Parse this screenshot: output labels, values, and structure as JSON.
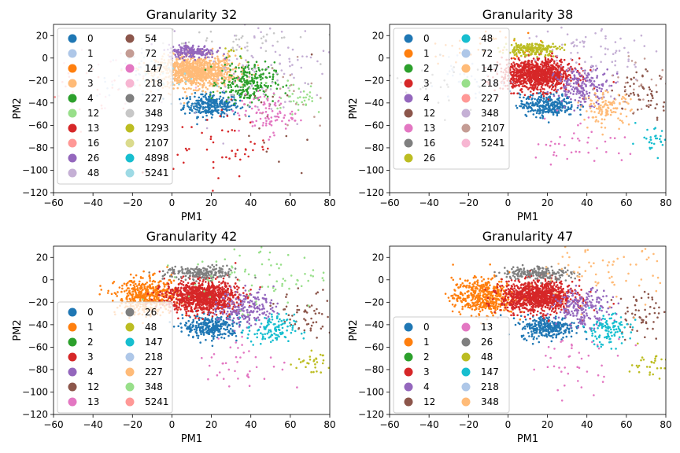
{
  "chart_data": [
    {
      "type": "scatter",
      "title": "Granularity 32",
      "xlabel": "PM1",
      "ylabel": "PM2",
      "xlim": [
        -60,
        80
      ],
      "ylim": [
        -120,
        30
      ],
      "xticks": [
        -60,
        -40,
        -20,
        0,
        20,
        40,
        60,
        80
      ],
      "yticks": [
        -120,
        -100,
        -80,
        -60,
        -40,
        -20,
        0,
        20
      ],
      "legend": {
        "placement": "upper-left",
        "columns": 2
      },
      "series": [
        {
          "name": "0",
          "color": "#1f77b4",
          "center": [
            20,
            -42
          ],
          "spread": [
            7,
            5
          ],
          "count": 300
        },
        {
          "name": "1",
          "color": "#aec7e8",
          "center": [
            -18,
            -15
          ],
          "spread": [
            10,
            10
          ],
          "count": 40
        },
        {
          "name": "2",
          "color": "#ff7f0e",
          "center": [
            0,
            0
          ],
          "spread": [
            0,
            0
          ],
          "count": 0
        },
        {
          "name": "3",
          "color": "#ffbb78",
          "center": [
            12,
            -12
          ],
          "spread": [
            10,
            7
          ],
          "count": 1000
        },
        {
          "name": "4",
          "color": "#2ca02c",
          "center": [
            38,
            -22
          ],
          "spread": [
            7,
            9
          ],
          "count": 250
        },
        {
          "name": "12",
          "color": "#98df8a",
          "center": [
            65,
            -35
          ],
          "spread": [
            7,
            7
          ],
          "count": 40
        },
        {
          "name": "13",
          "color": "#d62728",
          "center": [
            25,
            -75
          ],
          "spread": [
            12,
            18
          ],
          "count": 50
        },
        {
          "name": "16",
          "color": "#ff9896",
          "center": [
            -40,
            -30
          ],
          "spread": [
            12,
            15
          ],
          "count": 25
        },
        {
          "name": "26",
          "color": "#9467bd",
          "center": [
            10,
            6
          ],
          "spread": [
            6,
            3
          ],
          "count": 200
        },
        {
          "name": "48",
          "color": "#c5b0d5",
          "center": [
            45,
            -10
          ],
          "spread": [
            18,
            22
          ],
          "count": 100
        },
        {
          "name": "54",
          "color": "#8c564b",
          "center": [
            55,
            -65
          ],
          "spread": [
            10,
            25
          ],
          "count": 15
        },
        {
          "name": "72",
          "color": "#c49c94",
          "center": [
            60,
            -30
          ],
          "spread": [
            12,
            20
          ],
          "count": 20
        },
        {
          "name": "147",
          "color": "#e377c2",
          "center": [
            48,
            -50
          ],
          "spread": [
            7,
            9
          ],
          "count": 90
        },
        {
          "name": "218",
          "color": "#f7b6d2",
          "center": [
            -30,
            -20
          ],
          "spread": [
            15,
            15
          ],
          "count": 20
        },
        {
          "name": "227",
          "color": "#7f7f7f",
          "center": [
            0,
            0
          ],
          "spread": [
            0,
            0
          ],
          "count": 0
        },
        {
          "name": "348",
          "color": "#c7c7c7",
          "center": [
            30,
            15
          ],
          "spread": [
            20,
            8
          ],
          "count": 40
        },
        {
          "name": "1293",
          "color": "#bcbd22",
          "center": [
            30,
            5
          ],
          "spread": [
            3,
            3
          ],
          "count": 8
        },
        {
          "name": "2107",
          "color": "#dbdb8d",
          "center": [
            0,
            0
          ],
          "spread": [
            0,
            0
          ],
          "count": 0
        },
        {
          "name": "4898",
          "color": "#17becf",
          "center": [
            0,
            0
          ],
          "spread": [
            0,
            0
          ],
          "count": 0
        },
        {
          "name": "5241",
          "color": "#9edae5",
          "center": [
            -10,
            -15
          ],
          "spread": [
            10,
            10
          ],
          "count": 30
        }
      ]
    },
    {
      "type": "scatter",
      "title": "Granularity 38",
      "xlabel": "PM1",
      "ylabel": "PM2",
      "xlim": [
        -60,
        80
      ],
      "ylim": [
        -120,
        30
      ],
      "xticks": [
        -60,
        -40,
        -20,
        0,
        20,
        40,
        60,
        80
      ],
      "yticks": [
        -120,
        -100,
        -80,
        -60,
        -40,
        -20,
        0,
        20
      ],
      "legend": {
        "placement": "upper-left",
        "columns": 2
      },
      "series": [
        {
          "name": "0",
          "color": "#1f77b4",
          "center": [
            20,
            -42
          ],
          "spread": [
            7,
            5
          ],
          "count": 300
        },
        {
          "name": "1",
          "color": "#ff7f0e",
          "center": [
            -15,
            12
          ],
          "spread": [
            15,
            8
          ],
          "count": 40
        },
        {
          "name": "2",
          "color": "#2ca02c",
          "center": [
            0,
            0
          ],
          "spread": [
            0,
            0
          ],
          "count": 0
        },
        {
          "name": "3",
          "color": "#d62728",
          "center": [
            15,
            -15
          ],
          "spread": [
            9,
            7
          ],
          "count": 1000
        },
        {
          "name": "4",
          "color": "#9467bd",
          "center": [
            38,
            -25
          ],
          "spread": [
            7,
            8
          ],
          "count": 200
        },
        {
          "name": "12",
          "color": "#8c564b",
          "center": [
            70,
            -30
          ],
          "spread": [
            8,
            10
          ],
          "count": 60
        },
        {
          "name": "13",
          "color": "#e377c2",
          "center": [
            35,
            -75
          ],
          "spread": [
            12,
            12
          ],
          "count": 40
        },
        {
          "name": "16",
          "color": "#7f7f7f",
          "center": [
            -35,
            -20
          ],
          "spread": [
            15,
            12
          ],
          "count": 30
        },
        {
          "name": "26",
          "color": "#bcbd22",
          "center": [
            12,
            8
          ],
          "spread": [
            7,
            3
          ],
          "count": 200
        },
        {
          "name": "48",
          "color": "#17becf",
          "center": [
            72,
            -75
          ],
          "spread": [
            5,
            6
          ],
          "count": 30
        },
        {
          "name": "72",
          "color": "#aec7e8",
          "center": [
            -20,
            -20
          ],
          "spread": [
            10,
            8
          ],
          "count": 40
        },
        {
          "name": "147",
          "color": "#ffbb78",
          "center": [
            50,
            -45
          ],
          "spread": [
            6,
            7
          ],
          "count": 120
        },
        {
          "name": "218",
          "color": "#98df8a",
          "center": [
            0,
            0
          ],
          "spread": [
            0,
            0
          ],
          "count": 0
        },
        {
          "name": "227",
          "color": "#ff9896",
          "center": [
            0,
            0
          ],
          "spread": [
            0,
            0
          ],
          "count": 0
        },
        {
          "name": "348",
          "color": "#c5b0d5",
          "center": [
            45,
            5
          ],
          "spread": [
            18,
            15
          ],
          "count": 80
        },
        {
          "name": "2107",
          "color": "#c49c94",
          "center": [
            65,
            -20
          ],
          "spread": [
            10,
            15
          ],
          "count": 25
        },
        {
          "name": "5241",
          "color": "#f7b6d2",
          "center": [
            0,
            0
          ],
          "spread": [
            0,
            0
          ],
          "count": 0
        }
      ]
    },
    {
      "type": "scatter",
      "title": "Granularity 42",
      "xlabel": "PM1",
      "ylabel": "PM2",
      "xlim": [
        -60,
        80
      ],
      "ylim": [
        -120,
        30
      ],
      "xticks": [
        -60,
        -40,
        -20,
        0,
        20,
        40,
        60,
        80
      ],
      "yticks": [
        -120,
        -100,
        -80,
        -60,
        -40,
        -20,
        0,
        20
      ],
      "legend": {
        "placement": "lower-left",
        "columns": 2
      },
      "series": [
        {
          "name": "0",
          "color": "#1f77b4",
          "center": [
            20,
            -42
          ],
          "spread": [
            7,
            5
          ],
          "count": 300
        },
        {
          "name": "1",
          "color": "#ff7f0e",
          "center": [
            -12,
            -15
          ],
          "spread": [
            8,
            8
          ],
          "count": 500
        },
        {
          "name": "2",
          "color": "#2ca02c",
          "center": [
            0,
            0
          ],
          "spread": [
            0,
            0
          ],
          "count": 0
        },
        {
          "name": "3",
          "color": "#d62728",
          "center": [
            15,
            -15
          ],
          "spread": [
            9,
            7
          ],
          "count": 1000
        },
        {
          "name": "4",
          "color": "#9467bd",
          "center": [
            38,
            -25
          ],
          "spread": [
            7,
            8
          ],
          "count": 200
        },
        {
          "name": "12",
          "color": "#8c564b",
          "center": [
            70,
            -30
          ],
          "spread": [
            8,
            10
          ],
          "count": 60
        },
        {
          "name": "13",
          "color": "#e377c2",
          "center": [
            35,
            -75
          ],
          "spread": [
            12,
            12
          ],
          "count": 40
        },
        {
          "name": "26",
          "color": "#7f7f7f",
          "center": [
            15,
            6
          ],
          "spread": [
            9,
            3
          ],
          "count": 200
        },
        {
          "name": "48",
          "color": "#bcbd22",
          "center": [
            72,
            -75
          ],
          "spread": [
            5,
            6
          ],
          "count": 30
        },
        {
          "name": "147",
          "color": "#17becf",
          "center": [
            50,
            -45
          ],
          "spread": [
            6,
            7
          ],
          "count": 120
        },
        {
          "name": "218",
          "color": "#aec7e8",
          "center": [
            0,
            0
          ],
          "spread": [
            0,
            0
          ],
          "count": 0
        },
        {
          "name": "227",
          "color": "#ffbb78",
          "center": [
            0,
            0
          ],
          "spread": [
            0,
            0
          ],
          "count": 0
        },
        {
          "name": "348",
          "color": "#98df8a",
          "center": [
            45,
            5
          ],
          "spread": [
            18,
            15
          ],
          "count": 80
        },
        {
          "name": "5241",
          "color": "#ff9896",
          "center": [
            0,
            0
          ],
          "spread": [
            0,
            0
          ],
          "count": 0
        }
      ]
    },
    {
      "type": "scatter",
      "title": "Granularity 47",
      "xlabel": "PM1",
      "ylabel": "PM2",
      "xlim": [
        -60,
        80
      ],
      "ylim": [
        -120,
        30
      ],
      "xticks": [
        -60,
        -40,
        -20,
        0,
        20,
        40,
        60,
        80
      ],
      "yticks": [
        -120,
        -100,
        -80,
        -60,
        -40,
        -20,
        0,
        20
      ],
      "legend": {
        "placement": "lower-left",
        "columns": 2
      },
      "series": [
        {
          "name": "0",
          "color": "#1f77b4",
          "center": [
            20,
            -42
          ],
          "spread": [
            7,
            5
          ],
          "count": 300
        },
        {
          "name": "1",
          "color": "#ff7f0e",
          "center": [
            -12,
            -15
          ],
          "spread": [
            8,
            8
          ],
          "count": 500
        },
        {
          "name": "2",
          "color": "#2ca02c",
          "center": [
            0,
            0
          ],
          "spread": [
            0,
            0
          ],
          "count": 0
        },
        {
          "name": "3",
          "color": "#d62728",
          "center": [
            15,
            -15
          ],
          "spread": [
            9,
            7
          ],
          "count": 1000
        },
        {
          "name": "4",
          "color": "#9467bd",
          "center": [
            38,
            -25
          ],
          "spread": [
            7,
            8
          ],
          "count": 200
        },
        {
          "name": "12",
          "color": "#8c564b",
          "center": [
            70,
            -30
          ],
          "spread": [
            8,
            10
          ],
          "count": 60
        },
        {
          "name": "13",
          "color": "#e377c2",
          "center": [
            35,
            -75
          ],
          "spread": [
            12,
            12
          ],
          "count": 40
        },
        {
          "name": "26",
          "color": "#7f7f7f",
          "center": [
            15,
            6
          ],
          "spread": [
            9,
            3
          ],
          "count": 200
        },
        {
          "name": "48",
          "color": "#bcbd22",
          "center": [
            72,
            -75
          ],
          "spread": [
            5,
            6
          ],
          "count": 30
        },
        {
          "name": "147",
          "color": "#17becf",
          "center": [
            50,
            -45
          ],
          "spread": [
            6,
            7
          ],
          "count": 120
        },
        {
          "name": "218",
          "color": "#aec7e8",
          "center": [
            0,
            0
          ],
          "spread": [
            0,
            0
          ],
          "count": 0
        },
        {
          "name": "348",
          "color": "#ffbb78",
          "center": [
            45,
            5
          ],
          "spread": [
            18,
            15
          ],
          "count": 80
        }
      ]
    }
  ]
}
